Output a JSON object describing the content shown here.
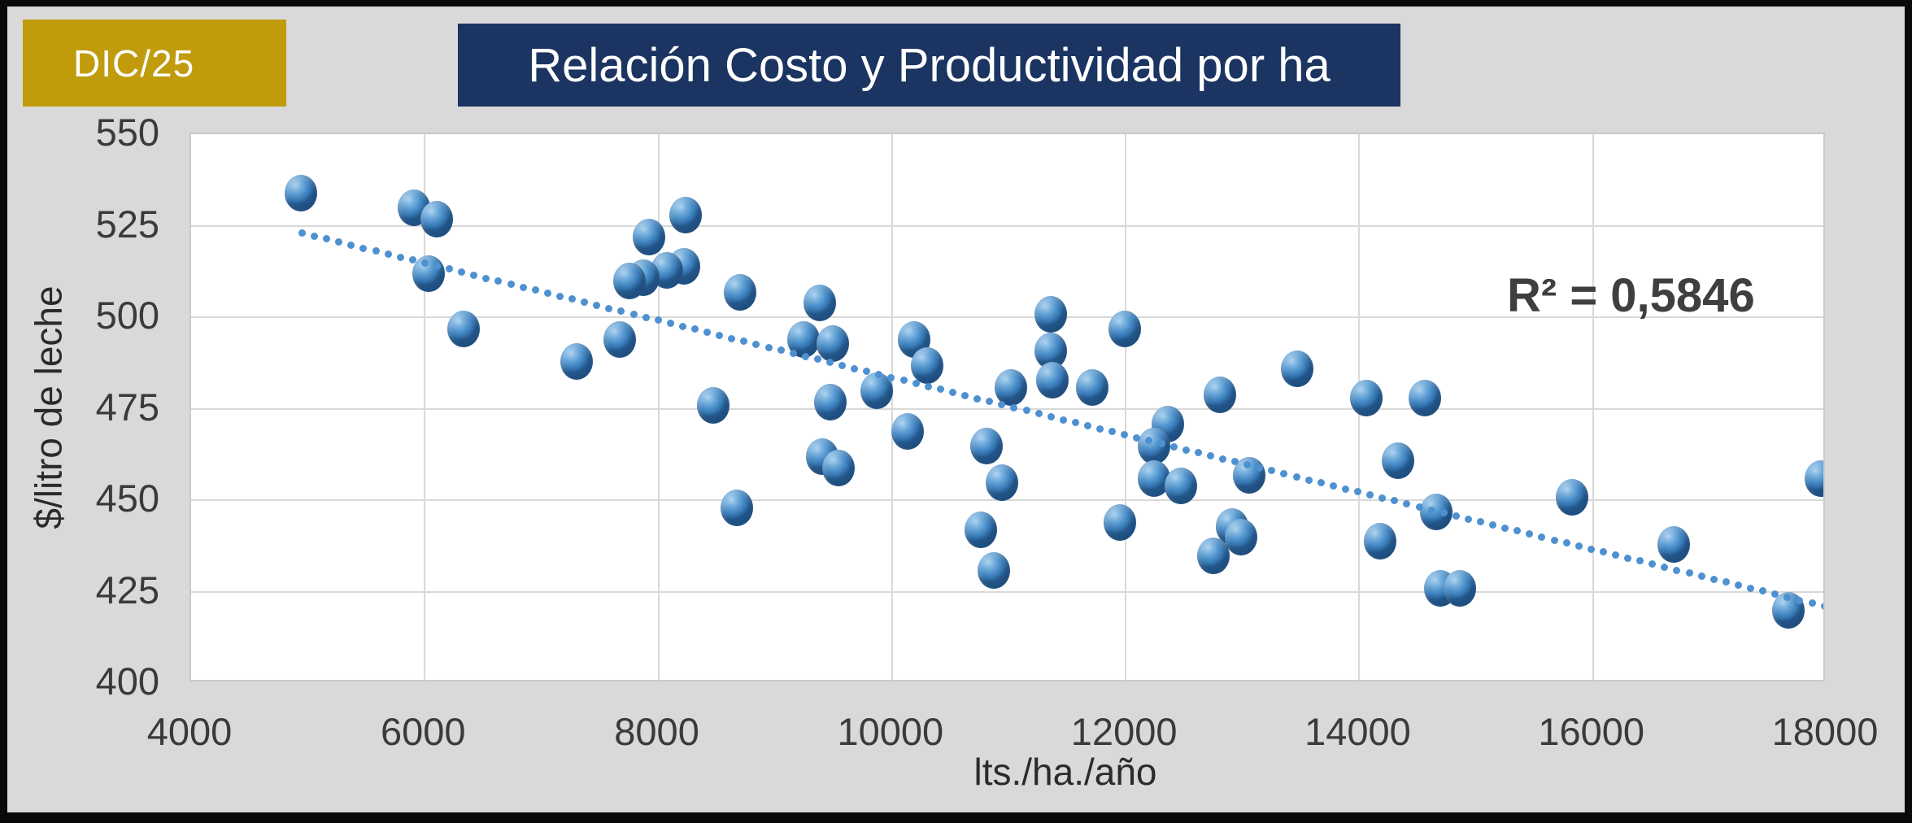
{
  "badge": {
    "label": "DIC/25"
  },
  "header": {
    "title": "Relación Costo y Productividad por ha"
  },
  "annotation": {
    "r_squared": "R² = 0,5846"
  },
  "colors": {
    "badge_bg": "#C09C0C",
    "title_bg": "#1B3461",
    "point_fill": "#5B9BD5",
    "trendline": "#4E91D0",
    "plot_bg": "#FFFFFF",
    "outer_bg": "#D9D9D9",
    "frame": "#0A0A0A",
    "grid": "#D9D9D9",
    "tick_text": "#3A3A3A",
    "annotation_text": "#3F3F3F"
  },
  "chart_data": {
    "type": "scatter",
    "title": "Relación Costo y Productividad por ha",
    "xlabel": "lts./ha./año",
    "ylabel": "$/litro de leche",
    "xlim": [
      4000,
      18000
    ],
    "ylim": [
      400,
      550
    ],
    "x_ticks": [
      4000,
      6000,
      8000,
      10000,
      12000,
      14000,
      16000,
      18000
    ],
    "y_ticks": [
      400,
      425,
      450,
      475,
      500,
      525,
      550
    ],
    "grid": true,
    "legend": false,
    "marker": "3d-sphere",
    "r_squared_label": "R² = 0,5846",
    "trendline": {
      "type": "linear",
      "style": "dotted",
      "x_start": 4950,
      "y_start": 523,
      "x_end": 17980,
      "y_end": 421
    },
    "points": [
      [
        4940,
        534
      ],
      [
        5910,
        530
      ],
      [
        6030,
        512
      ],
      [
        6100,
        527
      ],
      [
        6330,
        497
      ],
      [
        7300,
        488
      ],
      [
        7670,
        494
      ],
      [
        7750,
        510
      ],
      [
        7870,
        511
      ],
      [
        7920,
        522
      ],
      [
        8070,
        513
      ],
      [
        8220,
        514
      ],
      [
        8230,
        528
      ],
      [
        8470,
        476
      ],
      [
        8670,
        448
      ],
      [
        8700,
        507
      ],
      [
        9240,
        494
      ],
      [
        9380,
        504
      ],
      [
        9400,
        462
      ],
      [
        9470,
        477
      ],
      [
        9490,
        493
      ],
      [
        9540,
        459
      ],
      [
        9870,
        480
      ],
      [
        10130,
        469
      ],
      [
        10190,
        494
      ],
      [
        10300,
        487
      ],
      [
        10760,
        442
      ],
      [
        10810,
        465
      ],
      [
        10870,
        431
      ],
      [
        10940,
        455
      ],
      [
        11020,
        481
      ],
      [
        11360,
        501
      ],
      [
        11360,
        491
      ],
      [
        11370,
        483
      ],
      [
        11715,
        481
      ],
      [
        11950,
        444
      ],
      [
        11990,
        497
      ],
      [
        12240,
        465
      ],
      [
        12240,
        456
      ],
      [
        12360,
        471
      ],
      [
        12470,
        454
      ],
      [
        12750,
        435
      ],
      [
        12810,
        479
      ],
      [
        12910,
        443
      ],
      [
        12990,
        440
      ],
      [
        13060,
        457
      ],
      [
        13470,
        486
      ],
      [
        14060,
        478
      ],
      [
        14180,
        439
      ],
      [
        14330,
        461
      ],
      [
        14560,
        478
      ],
      [
        14660,
        447
      ],
      [
        14690,
        426
      ],
      [
        14860,
        426
      ],
      [
        15820,
        451
      ],
      [
        16690,
        438
      ],
      [
        17670,
        420
      ],
      [
        17950,
        456
      ]
    ]
  }
}
